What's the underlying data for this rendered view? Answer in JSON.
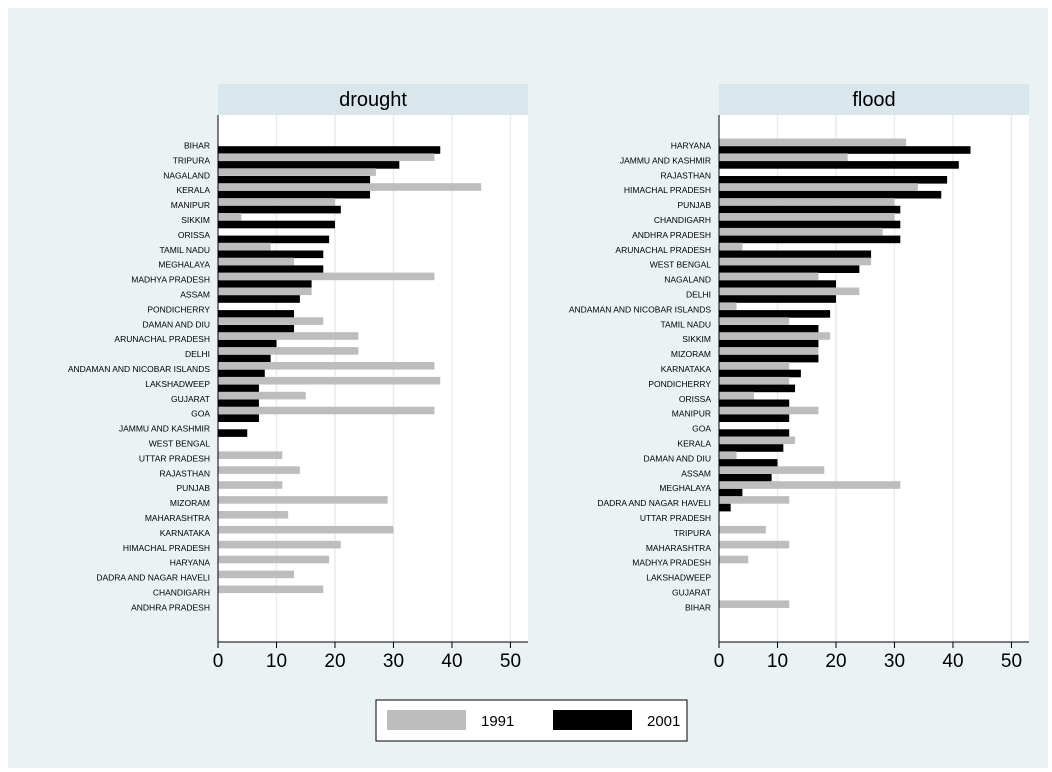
{
  "colors": {
    "background": "#eaf2f3",
    "plot": "#ffffff",
    "header": "#d9e6eb",
    "grid": "#e6ecef",
    "bar_1991": "#bdbdbd",
    "bar_2001": "#000000"
  },
  "legend": {
    "items": [
      "1991",
      "2001"
    ]
  },
  "chart_data": [
    {
      "type": "bar",
      "orientation": "horizontal",
      "title": "drought",
      "xlim": [
        0,
        53
      ],
      "xticks": [
        0,
        10,
        20,
        30,
        40,
        50
      ],
      "grid": true,
      "legend_position": "bottom",
      "categories": [
        "BIHAR",
        "TRIPURA",
        "NAGALAND",
        "KERALA",
        "MANIPUR",
        "SIKKIM",
        "ORISSA",
        "TAMIL NADU",
        "MEGHALAYA",
        "MADHYA PRADESH",
        "ASSAM",
        "PONDICHERRY",
        "DAMAN AND DIU",
        "ARUNACHAL PRADESH",
        "DELHI",
        "ANDAMAN AND NICOBAR ISLANDS",
        "LAKSHADWEEP",
        "GUJARAT",
        "GOA",
        "JAMMU AND KASHMIR",
        "WEST BENGAL",
        "UTTAR PRADESH",
        "RAJASTHAN",
        "PUNJAB",
        "MIZORAM",
        "MAHARASHTRA",
        "KARNATAKA",
        "HIMACHAL PRADESH",
        "HARYANA",
        "DADRA AND NAGAR HAVELI",
        "CHANDIGARH",
        "ANDHRA PRADESH"
      ],
      "series": [
        {
          "name": "1991",
          "values": [
            0,
            37,
            27,
            45,
            20,
            4,
            0,
            9,
            13,
            37,
            16,
            0,
            18,
            24,
            24,
            37,
            38,
            15,
            37,
            0,
            0,
            11,
            14,
            11,
            29,
            12,
            30,
            21,
            19,
            13,
            18,
            0
          ]
        },
        {
          "name": "2001",
          "values": [
            38,
            31,
            26,
            26,
            21,
            20,
            19,
            18,
            18,
            16,
            14,
            13,
            13,
            10,
            9,
            8,
            7,
            7,
            7,
            5,
            0,
            0,
            0,
            0,
            0,
            0,
            0,
            0,
            0,
            0,
            0,
            0
          ]
        }
      ]
    },
    {
      "type": "bar",
      "orientation": "horizontal",
      "title": "flood",
      "xlim": [
        0,
        53
      ],
      "xticks": [
        0,
        10,
        20,
        30,
        40,
        50
      ],
      "grid": true,
      "legend_position": "bottom",
      "categories": [
        "HARYANA",
        "JAMMU AND KASHMIR",
        "RAJASTHAN",
        "HIMACHAL PRADESH",
        "PUNJAB",
        "CHANDIGARH",
        "ANDHRA PRADESH",
        "ARUNACHAL PRADESH",
        "WEST BENGAL",
        "NAGALAND",
        "DELHI",
        "ANDAMAN AND NICOBAR ISLANDS",
        "TAMIL NADU",
        "SIKKIM",
        "MIZORAM",
        "KARNATAKA",
        "PONDICHERRY",
        "ORISSA",
        "MANIPUR",
        "GOA",
        "KERALA",
        "DAMAN AND DIU",
        "ASSAM",
        "MEGHALAYA",
        "DADRA AND NAGAR HAVELI",
        "UTTAR PRADESH",
        "TRIPURA",
        "MAHARASHTRA",
        "MADHYA PRADESH",
        "LAKSHADWEEP",
        "GUJARAT",
        "BIHAR"
      ],
      "series": [
        {
          "name": "1991",
          "values": [
            32,
            22,
            0,
            34,
            30,
            30,
            28,
            4,
            26,
            17,
            24,
            3,
            12,
            19,
            17,
            12,
            12,
            6,
            17,
            0,
            13,
            3,
            18,
            31,
            12,
            0,
            8,
            12,
            5,
            0,
            0,
            12
          ]
        },
        {
          "name": "2001",
          "values": [
            43,
            41,
            39,
            38,
            31,
            31,
            31,
            26,
            24,
            20,
            20,
            19,
            17,
            17,
            17,
            14,
            13,
            12,
            12,
            12,
            11,
            10,
            9,
            4,
            2,
            0,
            0,
            0,
            0,
            0,
            0,
            0
          ]
        }
      ]
    }
  ]
}
